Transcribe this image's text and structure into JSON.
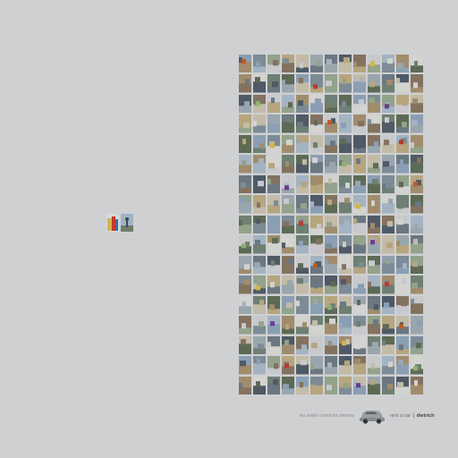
{
  "ad": {
    "tagline": "en avión conocés menos",
    "brand_text": "rent a car",
    "brand_separator": "|",
    "brand_name": "dietrich"
  },
  "palette": [
    "#8a9fb4",
    "#6e7f73",
    "#a08c6d",
    "#c7c9cc",
    "#4f5a66",
    "#9aa6ae",
    "#b7a57e",
    "#7c8b95",
    "#5d6a55",
    "#d3d3d0",
    "#a3b3c2",
    "#847260",
    "#6b7781",
    "#c2bba7",
    "#93a28a"
  ],
  "accent_colors": [
    "#c05a1e",
    "#6b3d8f",
    "#8fb26b",
    "#b83b2e",
    "#d1b44a"
  ]
}
